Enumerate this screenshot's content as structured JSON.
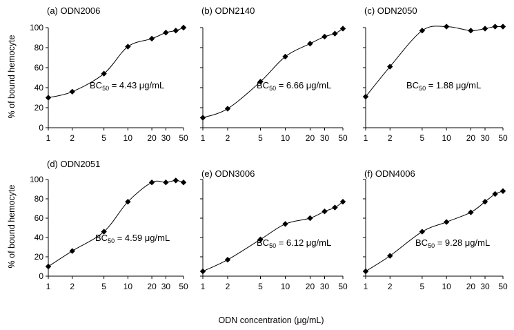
{
  "y_axis_title": "% of bound hemocyte",
  "x_axis_title": "ODN concentration (μg/mL)",
  "line_color": "#000000",
  "marker_color": "#000000",
  "chart_data": [
    {
      "type": "line",
      "title": "(a) ODN2006",
      "bc_prefix": "BC",
      "bc_sub": "50",
      "bc_rest": " = 4.43 μg/mL",
      "xscale": "log",
      "x_ticks": [
        1,
        2,
        5,
        10,
        20,
        30,
        50
      ],
      "x_tick_labels": [
        "1",
        "2",
        "5",
        "10",
        "20",
        "30",
        "50"
      ],
      "y_ticks": [
        0,
        20,
        40,
        60,
        80,
        100
      ],
      "y_tick_labels": [
        "0",
        "20",
        "40",
        "60",
        "80",
        "100"
      ],
      "ylim": [
        0,
        100
      ],
      "x": [
        1,
        2,
        5,
        10,
        20,
        30,
        40,
        50
      ],
      "y": [
        30,
        36,
        54,
        81,
        89,
        95,
        97,
        100
      ]
    },
    {
      "type": "line",
      "title": "(b) ODN2140",
      "bc_prefix": "BC",
      "bc_sub": "50",
      "bc_rest": " = 6.66 μg/mL",
      "xscale": "log",
      "x_ticks": [
        1,
        2,
        5,
        10,
        20,
        30,
        50
      ],
      "x_tick_labels": [
        "1",
        "2",
        "5",
        "10",
        "20",
        "30",
        "50"
      ],
      "y_ticks": [
        0,
        20,
        40,
        60,
        80,
        100
      ],
      "y_tick_labels": [],
      "ylim": [
        0,
        100
      ],
      "x": [
        1,
        2,
        5,
        10,
        20,
        30,
        40,
        50
      ],
      "y": [
        10,
        19,
        46,
        71,
        84,
        91,
        94,
        99
      ]
    },
    {
      "type": "line",
      "title": "(c) ODN2050",
      "bc_prefix": "BC",
      "bc_sub": "50",
      "bc_rest": " = 1.88 μg/mL",
      "xscale": "log",
      "x_ticks": [
        1,
        2,
        5,
        10,
        20,
        30,
        50
      ],
      "x_tick_labels": [
        "1",
        "2",
        "5",
        "10",
        "20",
        "30",
        "50"
      ],
      "y_ticks": [
        0,
        20,
        40,
        60,
        80,
        100
      ],
      "y_tick_labels": [],
      "ylim": [
        0,
        100
      ],
      "x": [
        1,
        2,
        5,
        10,
        20,
        30,
        40,
        50
      ],
      "y": [
        31,
        61,
        97,
        101,
        97,
        99,
        101,
        101
      ]
    },
    {
      "type": "line",
      "title": "(d) ODN2051",
      "bc_prefix": "BC",
      "bc_sub": "50",
      "bc_rest": " = 4.59 μg/mL",
      "xscale": "log",
      "x_ticks": [
        1,
        2,
        5,
        10,
        20,
        30,
        50
      ],
      "x_tick_labels": [
        "1",
        "2",
        "5",
        "10",
        "20",
        "30",
        "50"
      ],
      "y_ticks": [
        0,
        20,
        40,
        60,
        80,
        100
      ],
      "y_tick_labels": [
        "0",
        "20",
        "40",
        "60",
        "80",
        "100"
      ],
      "ylim": [
        0,
        100
      ],
      "x": [
        1,
        2,
        5,
        10,
        20,
        30,
        40,
        50
      ],
      "y": [
        10,
        26,
        46,
        77,
        97,
        97,
        99,
        97
      ]
    },
    {
      "type": "line",
      "title": "(e) ODN3006",
      "bc_prefix": "BC",
      "bc_sub": "50",
      "bc_rest": " = 6.12 μg/mL",
      "xscale": "log",
      "x_ticks": [
        1,
        2,
        5,
        10,
        20,
        30,
        50
      ],
      "x_tick_labels": [
        "1",
        "2",
        "5",
        "10",
        "20",
        "30",
        "50"
      ],
      "y_ticks": [
        0,
        20,
        40,
        60,
        80,
        100
      ],
      "y_tick_labels": [],
      "ylim": [
        0,
        100
      ],
      "x": [
        1,
        2,
        5,
        10,
        20,
        30,
        40,
        50
      ],
      "y": [
        5,
        17,
        38,
        54,
        60,
        67,
        71,
        77
      ]
    },
    {
      "type": "line",
      "title": "(f) ODN4006",
      "bc_prefix": "BC",
      "bc_sub": "50",
      "bc_rest": " = 9.28 μg/mL",
      "xscale": "log",
      "x_ticks": [
        1,
        2,
        5,
        10,
        20,
        30,
        50
      ],
      "x_tick_labels": [
        "1",
        "2",
        "5",
        "10",
        "20",
        "30",
        "50"
      ],
      "y_ticks": [
        0,
        20,
        40,
        60,
        80,
        100
      ],
      "y_tick_labels": [],
      "ylim": [
        0,
        100
      ],
      "x": [
        1,
        2,
        5,
        10,
        20,
        30,
        40,
        50
      ],
      "y": [
        5,
        21,
        46,
        56,
        66,
        77,
        85,
        88
      ]
    }
  ]
}
